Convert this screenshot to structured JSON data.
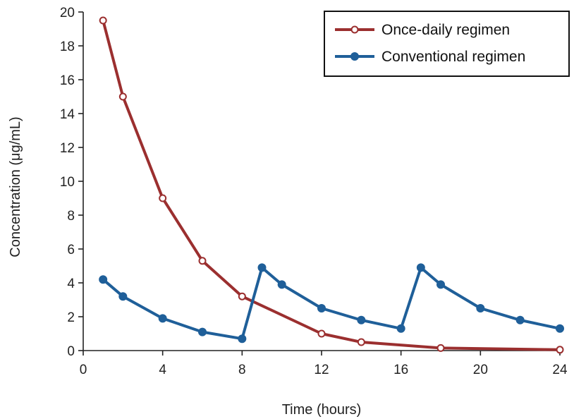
{
  "chart_data": {
    "type": "line",
    "title": "",
    "xlabel": "Time (hours)",
    "ylabel": "Concentration (μg/mL)",
    "xlim": [
      0,
      24
    ],
    "ylim": [
      0,
      20
    ],
    "xticks": [
      0,
      4,
      8,
      12,
      16,
      20,
      24
    ],
    "yticks": [
      0,
      2,
      4,
      6,
      8,
      10,
      12,
      14,
      16,
      18,
      20
    ],
    "grid": false,
    "legend": "top-right",
    "series": [
      {
        "name": "Once-daily regimen",
        "color": "#9b2f2f",
        "marker": "open-circle",
        "x": [
          1,
          2,
          4,
          6,
          8,
          12,
          14,
          18,
          24
        ],
        "y": [
          19.5,
          15.0,
          9.0,
          5.3,
          3.2,
          1.0,
          0.5,
          0.15,
          0.05
        ]
      },
      {
        "name": "Conventional regimen",
        "color": "#1f5f99",
        "marker": "filled-circle",
        "x": [
          1,
          2,
          4,
          6,
          8,
          9,
          10,
          12,
          14,
          16,
          17,
          18,
          20,
          22,
          24
        ],
        "y": [
          4.2,
          3.2,
          1.9,
          1.1,
          0.7,
          4.9,
          3.9,
          2.5,
          1.8,
          1.3,
          4.9,
          3.9,
          2.5,
          1.8,
          1.3
        ]
      }
    ]
  }
}
